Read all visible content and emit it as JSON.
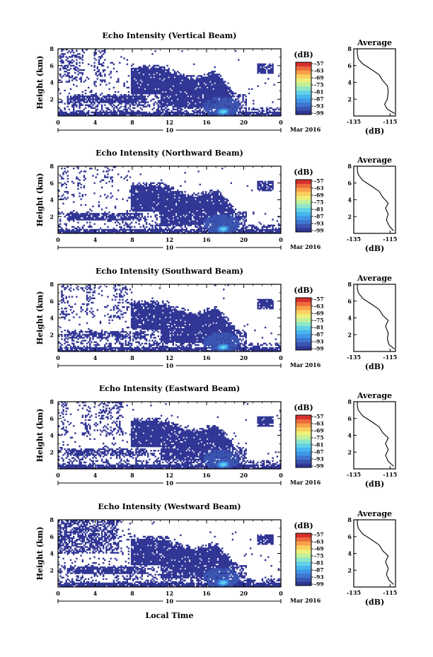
{
  "figure": {
    "time_axis_label": "Local Time",
    "date_label": "Mar 2016",
    "date_marker_label": "10",
    "colorbar_unit": "(dB)",
    "average_title": "Average",
    "average_unit": "(dB)"
  },
  "colors": {
    "background": "#ffffff",
    "axes": "#000000",
    "colormap": [
      "#313695",
      "#3a55b0",
      "#3f75cf",
      "#3f96e6",
      "#47b5ee",
      "#63d2e6",
      "#8fe6c7",
      "#c2f09a",
      "#ecf07a",
      "#fbd060",
      "#f8a14a",
      "#ec6a3b",
      "#d7302f"
    ]
  },
  "chart_data": [
    {
      "type": "heatmap",
      "title": "Echo Intensity (Vertical Beam)",
      "xlabel": "",
      "ylabel": "Height (km)",
      "xlim": [
        0,
        24
      ],
      "xticks": [
        "0",
        "4",
        "8",
        "12",
        "16",
        "20",
        "0"
      ],
      "ylim": [
        0,
        8
      ],
      "yticks": [
        "2",
        "4",
        "6",
        "8"
      ],
      "colorbar_unit": "(dB)",
      "colorbar_ticks": [
        "-57",
        "-63",
        "-69",
        "-75",
        "-81",
        "-87",
        "-93",
        "-99"
      ],
      "average_profile": {
        "title": "Average",
        "xlabel": "(dB)",
        "xticks": [
          "-135",
          "-115"
        ],
        "xlim": [
          -135,
          -112
        ],
        "points": [
          [
            -112.5,
            0.3
          ],
          [
            -116.5,
            0.8
          ],
          [
            -118,
            1.4
          ],
          [
            -116.5,
            2.0
          ],
          [
            -116,
            3.0
          ],
          [
            -116.5,
            3.6
          ],
          [
            -119,
            4.2
          ],
          [
            -121,
            4.9
          ],
          [
            -125,
            5.5
          ],
          [
            -130,
            6.2
          ],
          [
            -132.5,
            6.8
          ],
          [
            -133,
            7.4
          ],
          [
            -133,
            8.0
          ]
        ]
      }
    },
    {
      "type": "heatmap",
      "title": "Echo Intensity (Northward Beam)",
      "xlabel": "",
      "ylabel": "Height (km)",
      "xlim": [
        0,
        24
      ],
      "xticks": [
        "0",
        "4",
        "8",
        "12",
        "16",
        "20",
        "0"
      ],
      "ylim": [
        0,
        8
      ],
      "yticks": [
        "2",
        "4",
        "6",
        "8"
      ],
      "colorbar_unit": "(dB)",
      "colorbar_ticks": [
        "-57",
        "-63",
        "-69",
        "-75",
        "-81",
        "-87",
        "-93",
        "-99"
      ],
      "average_profile": {
        "title": "Average",
        "xlabel": "(dB)",
        "xticks": [
          "-135",
          "-115"
        ],
        "xlim": [
          -135,
          -112
        ],
        "points": [
          [
            -113,
            0.3
          ],
          [
            -115.5,
            0.9
          ],
          [
            -117,
            1.6
          ],
          [
            -116,
            2.3
          ],
          [
            -117.5,
            3.0
          ],
          [
            -116,
            3.6
          ],
          [
            -119,
            4.3
          ],
          [
            -121,
            5.0
          ],
          [
            -125,
            5.6
          ],
          [
            -130,
            6.3
          ],
          [
            -132.5,
            7.0
          ],
          [
            -133,
            7.5
          ],
          [
            -133,
            8.0
          ]
        ]
      }
    },
    {
      "type": "heatmap",
      "title": "Echo Intensity (Southward Beam)",
      "xlabel": "",
      "ylabel": "Height (km)",
      "xlim": [
        0,
        24
      ],
      "xticks": [
        "0",
        "4",
        "8",
        "12",
        "16",
        "20",
        "0"
      ],
      "ylim": [
        0,
        8
      ],
      "yticks": [
        "2",
        "4",
        "6",
        "8"
      ],
      "colorbar_unit": "(dB)",
      "colorbar_ticks": [
        "-57",
        "-63",
        "-69",
        "-75",
        "-81",
        "-87",
        "-93",
        "-99"
      ],
      "average_profile": {
        "title": "Average",
        "xlabel": "(dB)",
        "xticks": [
          "-135",
          "-115"
        ],
        "xlim": [
          -135,
          -112
        ],
        "points": [
          [
            -112.5,
            0.3
          ],
          [
            -115.5,
            0.8
          ],
          [
            -116.5,
            1.5
          ],
          [
            -116,
            2.2
          ],
          [
            -117.5,
            3.0
          ],
          [
            -116,
            3.7
          ],
          [
            -119,
            4.3
          ],
          [
            -121,
            5.0
          ],
          [
            -125,
            5.6
          ],
          [
            -130,
            6.3
          ],
          [
            -132.5,
            7.0
          ],
          [
            -133,
            7.5
          ],
          [
            -133,
            8.0
          ]
        ]
      }
    },
    {
      "type": "heatmap",
      "title": "Echo Intensity (Eastward Beam)",
      "xlabel": "",
      "ylabel": "Height (km)",
      "xlim": [
        0,
        24
      ],
      "xticks": [
        "0",
        "4",
        "8",
        "12",
        "16",
        "20",
        "0"
      ],
      "ylim": [
        0,
        8
      ],
      "yticks": [
        "2",
        "4",
        "6",
        "8"
      ],
      "colorbar_unit": "(dB)",
      "colorbar_ticks": [
        "-57",
        "-63",
        "-69",
        "-75",
        "-81",
        "-87",
        "-93",
        "-99"
      ],
      "average_profile": {
        "title": "Average",
        "xlabel": "(dB)",
        "xticks": [
          "-135",
          "-115"
        ],
        "xlim": [
          -135,
          -112
        ],
        "points": [
          [
            -113,
            0.3
          ],
          [
            -116,
            0.9
          ],
          [
            -117.5,
            1.6
          ],
          [
            -116,
            2.3
          ],
          [
            -117.5,
            3.0
          ],
          [
            -116,
            3.7
          ],
          [
            -119,
            4.3
          ],
          [
            -121,
            5.0
          ],
          [
            -125,
            5.6
          ],
          [
            -130,
            6.3
          ],
          [
            -132.5,
            7.0
          ],
          [
            -133,
            7.5
          ],
          [
            -133,
            8.0
          ]
        ]
      }
    },
    {
      "type": "heatmap",
      "title": "Echo Intensity (Westward Beam)",
      "xlabel": "Local Time",
      "ylabel": "Height (km)",
      "xlim": [
        0,
        24
      ],
      "xticks": [
        "0",
        "4",
        "8",
        "12",
        "16",
        "20",
        "0"
      ],
      "ylim": [
        0,
        8
      ],
      "yticks": [
        "2",
        "4",
        "6",
        "8"
      ],
      "colorbar_unit": "(dB)",
      "colorbar_ticks": [
        "-57",
        "-63",
        "-69",
        "-75",
        "-81",
        "-87",
        "-93",
        "-99"
      ],
      "average_profile": {
        "title": "Average",
        "xlabel": "(dB)",
        "xticks": [
          "-135",
          "-115"
        ],
        "xlim": [
          -135,
          -112
        ],
        "points": [
          [
            -113,
            0.3
          ],
          [
            -115.5,
            0.8
          ],
          [
            -117,
            1.5
          ],
          [
            -116,
            2.2
          ],
          [
            -117.5,
            3.0
          ],
          [
            -116,
            3.7
          ],
          [
            -119,
            4.3
          ],
          [
            -121,
            5.0
          ],
          [
            -125,
            5.6
          ],
          [
            -130,
            6.3
          ],
          [
            -132.5,
            7.0
          ],
          [
            -133,
            7.5
          ],
          [
            -133,
            8.0
          ]
        ]
      }
    }
  ]
}
